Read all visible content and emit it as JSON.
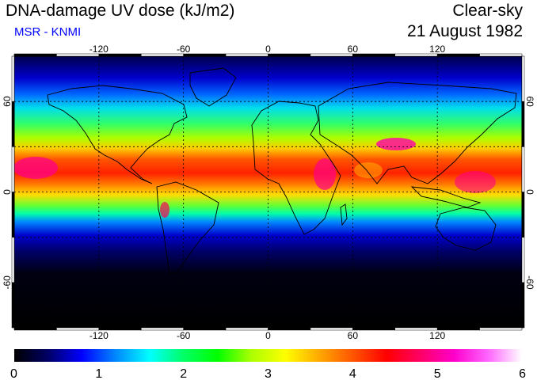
{
  "header": {
    "title": "DNA-damage UV dose (kJ/m2)",
    "subtitle": "MSR - KNMI",
    "condition": "Clear-sky",
    "date": "21 August 1982"
  },
  "colors": {
    "subtitle": "#0000ff",
    "colormap": [
      "#000000",
      "#000066",
      "#0000ff",
      "#0088ff",
      "#00ffff",
      "#00ff66",
      "#00ff00",
      "#aaff00",
      "#ffff00",
      "#ffaa00",
      "#ff5500",
      "#ff0000",
      "#ff0066",
      "#ff00cc",
      "#ff66ff",
      "#ffffff"
    ]
  },
  "map": {
    "projection": "equirectangular",
    "lon_range": [
      -180,
      180
    ],
    "lat_range": [
      -90,
      90
    ],
    "grid_lons": [
      -120,
      -60,
      0,
      60,
      120
    ],
    "grid_lats": [
      -60,
      -30,
      0,
      30,
      60
    ],
    "top_tick_labels": [
      "-120",
      "-60",
      "0",
      "60",
      "120"
    ],
    "bottom_tick_labels": [
      "-120",
      "-60",
      "0",
      "60",
      "120"
    ],
    "left_tick_labels": [
      "60",
      "0",
      "-60"
    ],
    "right_tick_labels": [
      "60",
      "0",
      "-60"
    ]
  },
  "colorbar": {
    "min": 0,
    "max": 6,
    "tick_labels": [
      "0",
      "1",
      "2",
      "3",
      "4",
      "5",
      "6"
    ]
  }
}
